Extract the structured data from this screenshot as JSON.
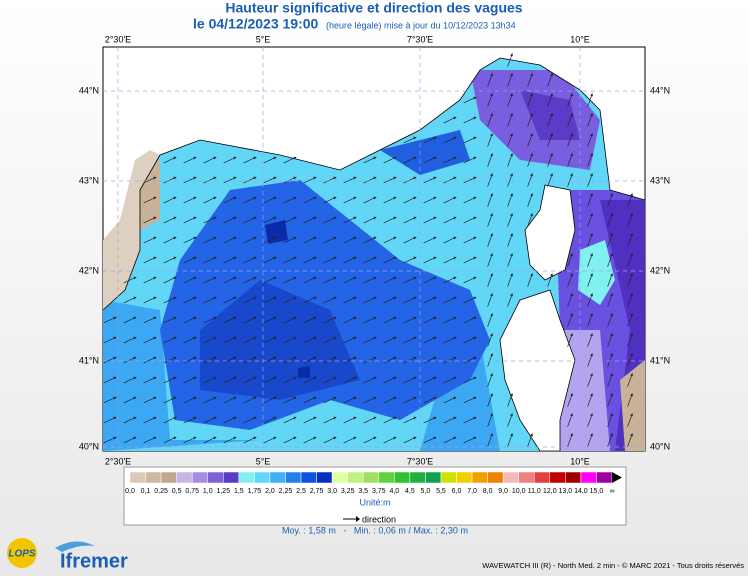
{
  "header": {
    "title": "Hauteur significative et direction des vagues",
    "date": "le 04/12/2023 19:00",
    "update": "(heure légale) mise à jour du 10/12/2023 13h34"
  },
  "map": {
    "lon_labels": [
      "2°30'E",
      "5°E",
      "7°30'E",
      "10°E"
    ],
    "lat_labels": [
      "44°N",
      "43°N",
      "42°N",
      "41°N",
      "40°N"
    ]
  },
  "legend": {
    "labels": [
      "0,0",
      "0,1",
      "0,25",
      "0,5",
      "0,75",
      "1,0",
      "1,25",
      "1,5",
      "1,75",
      "2,0",
      "2,25",
      "2,5",
      "2,75",
      "3,0",
      "3,25",
      "3,5",
      "3,75",
      "4,0",
      "4,5",
      "5,0",
      "5,5",
      "6,0",
      "7,0",
      "8,0",
      "9,0",
      "10,0",
      "11,0",
      "12,0",
      "13,0",
      "14,0",
      "15,0",
      "∞"
    ],
    "colors": [
      "#dcc8b4",
      "#cfb8a0",
      "#c4a88c",
      "#c8b4e6",
      "#a88ce0",
      "#8060d8",
      "#5a3cc8",
      "#80f0f0",
      "#60d8f8",
      "#40b0f8",
      "#2080f0",
      "#1050e0",
      "#0830c0",
      "#e0ffa0",
      "#c0f080",
      "#a0e060",
      "#60d040",
      "#30c030",
      "#20b040",
      "#10a050",
      "#d0e000",
      "#f0d000",
      "#f0a000",
      "#f08000",
      "#f4b8b8",
      "#f08080",
      "#e04040",
      "#c00000",
      "#a00000",
      "#ff00ff",
      "#a000a0"
    ],
    "unit": "Unité:m",
    "direction": "direction"
  },
  "stats": "Moy. : 1,58 m   -   Min. : 0,06 m / Max. : 2,30 m",
  "logos": {
    "lops": "LOPS",
    "ifremer": "Ifremer"
  },
  "footer": "WAVEWATCH III (R) - North Med. 2 min - © MARC 2021 - Tous droits réservés"
}
